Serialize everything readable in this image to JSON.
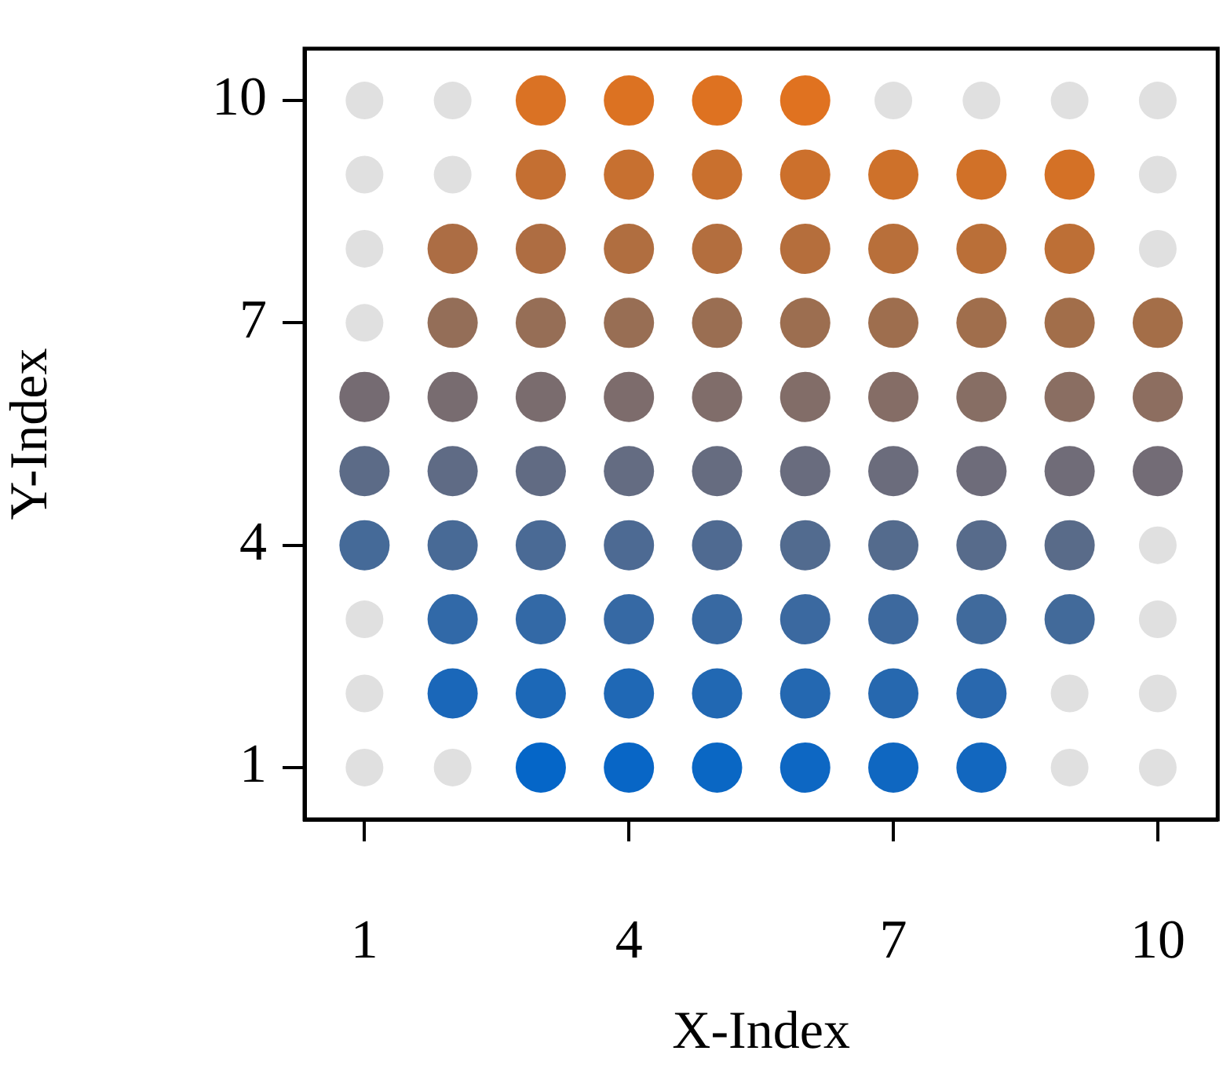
{
  "chart_data": {
    "type": "scatter",
    "xlabel": "X-Index",
    "ylabel": "Y-Index",
    "xlim": [
      0.32,
      10.68
    ],
    "ylim": [
      0.3,
      10.7
    ],
    "xticks": [
      1,
      4,
      7,
      10
    ],
    "yticks": [
      1,
      4,
      7,
      10
    ],
    "grid": false,
    "legend": false,
    "marker": "circle",
    "series": [
      {
        "x": [
          3,
          4,
          5,
          6,
          7,
          8,
          2,
          3,
          4,
          5,
          6,
          7,
          8,
          2,
          3,
          4,
          5,
          6,
          7,
          8,
          9,
          1,
          2,
          3,
          4,
          5,
          6,
          7,
          8,
          9,
          1,
          2,
          3,
          4,
          5,
          6,
          7,
          8,
          9,
          10,
          1,
          2,
          3,
          4,
          5,
          6,
          7,
          8,
          9,
          10,
          2,
          3,
          4,
          5,
          6,
          7,
          8,
          9,
          10,
          2,
          3,
          4,
          5,
          6,
          7,
          8,
          9,
          3,
          4,
          5,
          6,
          7,
          8,
          9,
          3,
          4,
          5,
          6
        ],
        "values": [
          1,
          1,
          1,
          1,
          1,
          1,
          2,
          2,
          2,
          2,
          2,
          2,
          2,
          3,
          3,
          3,
          3,
          3,
          3,
          3,
          3,
          4,
          4,
          4,
          4,
          4,
          4,
          4,
          4,
          4,
          5,
          5,
          5,
          5,
          5,
          5,
          5,
          5,
          5,
          5,
          6,
          6,
          6,
          6,
          6,
          6,
          6,
          6,
          6,
          6,
          7,
          7,
          7,
          7,
          7,
          7,
          7,
          7,
          7,
          8,
          8,
          8,
          8,
          8,
          8,
          8,
          8,
          9,
          9,
          9,
          9,
          9,
          9,
          9,
          10,
          10,
          10,
          10
        ],
        "colors": [
          "#0566c8",
          "#0866c6",
          "#0a67c4",
          "#0d67c3",
          "#0f67c1",
          "#1267bf",
          "#1a67b9",
          "#1c68b7",
          "#1f68b5",
          "#2168b3",
          "#2468b1",
          "#2668af",
          "#2968ae",
          "#3169a8",
          "#3369a6",
          "#3669a4",
          "#3869a2",
          "#3b69a0",
          "#3d699e",
          "#406a9c",
          "#426a9a",
          "#456a98",
          "#486a96",
          "#4a6a95",
          "#4d6a93",
          "#4f6a91",
          "#526b8f",
          "#546b8d",
          "#576b8b",
          "#596b89",
          "#5c6b87",
          "#5f6b85",
          "#616b83",
          "#646c82",
          "#666c80",
          "#696c7e",
          "#6b6c7c",
          "#6e6c7a",
          "#706c78",
          "#736c76",
          "#756b72",
          "#786c70",
          "#7a6c6e",
          "#7d6c6c",
          "#806d6a",
          "#826d68",
          "#856d66",
          "#876e64",
          "#8a6e62",
          "#8d6e60",
          "#946e58",
          "#966e56",
          "#986e54",
          "#9a6e52",
          "#9c6e50",
          "#9e6e4e",
          "#a06e4c",
          "#a26e4a",
          "#a46e48",
          "#ac6d44",
          "#ae6d42",
          "#b06e40",
          "#b36e3e",
          "#b56e3c",
          "#b86f3a",
          "#ba6f38",
          "#bd6f36",
          "#c46f32",
          "#c77030",
          "#c9702e",
          "#cc702c",
          "#ce712a",
          "#d17128",
          "#d47126",
          "#da7224",
          "#dc7222",
          "#de7221",
          "#e07220"
        ]
      },
      {
        "x": [
          1,
          2,
          9,
          10,
          1,
          9,
          10,
          1,
          10,
          10,
          1,
          1,
          10,
          1,
          2,
          10,
          1,
          2,
          7,
          8,
          9,
          10
        ],
        "values": [
          1,
          1,
          1,
          1,
          2,
          2,
          2,
          3,
          3,
          4,
          7,
          8,
          8,
          9,
          9,
          9,
          10,
          10,
          10,
          10,
          10,
          10
        ],
        "color": "#e0e0e0"
      }
    ]
  }
}
